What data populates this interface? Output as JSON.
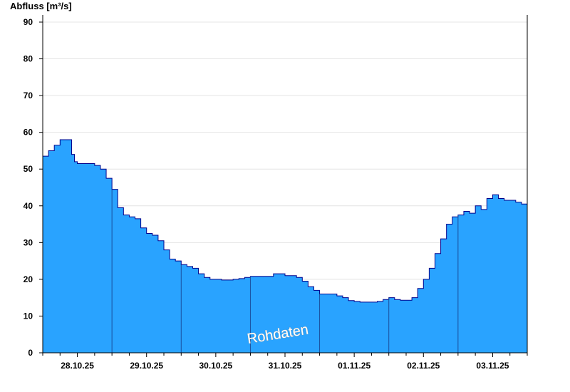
{
  "chart_data": {
    "type": "area",
    "ylabel": "Abfluss [m³/s]",
    "ylim": [
      0,
      90
    ],
    "yticks": [
      0,
      10,
      20,
      30,
      40,
      50,
      60,
      70,
      80,
      90
    ],
    "x_start": "27.10.25 12:00",
    "x_end": "03.11.25 12:00",
    "xtick_labels": [
      "28.10.25",
      "29.10.25",
      "30.10.25",
      "31.10.25",
      "01.11.25",
      "02.11.25",
      "03.11.25"
    ],
    "watermark": "Rohdaten",
    "grid": true,
    "colors": {
      "fill": "#29a3ff",
      "line": "#00008b",
      "grid": "#e4e4e4",
      "axis": "#000000"
    },
    "series": [
      {
        "x_hours": [
          0,
          2,
          4,
          6,
          8,
          10,
          11,
          12,
          14,
          16,
          18,
          20,
          22,
          24,
          26,
          28,
          30,
          32,
          34,
          36,
          38,
          40,
          42,
          44,
          46,
          48,
          50,
          52,
          54,
          56,
          58,
          60,
          62,
          64,
          66,
          68,
          70,
          72,
          74,
          76,
          78,
          80,
          82,
          84,
          86,
          88,
          90,
          92,
          94,
          96,
          98,
          100,
          102,
          104,
          106,
          108,
          110,
          112,
          114,
          116,
          118,
          120,
          122,
          124,
          126,
          128,
          130,
          132,
          134,
          136,
          138,
          140,
          142,
          144,
          146,
          148,
          150,
          152,
          154,
          156,
          158,
          160,
          162,
          164,
          166,
          168
        ],
        "values": [
          53.5,
          55,
          56.5,
          58,
          58,
          54,
          52,
          51.5,
          51.5,
          51.5,
          51,
          50,
          47.5,
          44.5,
          39.5,
          37.5,
          37,
          36.5,
          34,
          32.5,
          32,
          30.5,
          28,
          25.5,
          25,
          24,
          23.5,
          23,
          21.5,
          20.5,
          20,
          20,
          19.8,
          19.8,
          20,
          20.2,
          20.5,
          20.8,
          20.8,
          20.8,
          20.8,
          21.5,
          21.5,
          21,
          21,
          20.5,
          19.5,
          18,
          17,
          16,
          16,
          16,
          15.5,
          15,
          14.2,
          14,
          13.8,
          13.8,
          13.8,
          14,
          14.5,
          15,
          14.5,
          14.3,
          14.3,
          15,
          17.5,
          20,
          23,
          27,
          31,
          35,
          37,
          37.5,
          38.5,
          38,
          40,
          39,
          42,
          43,
          42,
          41.5,
          41.5,
          41,
          40.5,
          38.5
        ]
      }
    ]
  }
}
